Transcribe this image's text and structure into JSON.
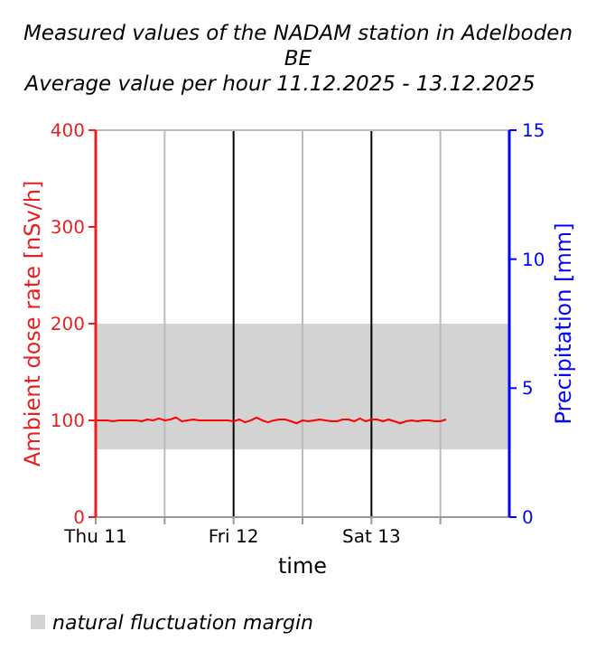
{
  "chart_data": {
    "type": "line",
    "title": "Measured values of the NADAM station in Adelboden BE",
    "subtitle": "Average value per hour 11.12.2025 - 13.12.2025",
    "xlabel": "time",
    "ylabel": "Ambient dose rate [nSv/h]",
    "y2label": "Precipitation [mm]",
    "x": [
      "2025-12-11T00:00",
      "2025-12-11T01:00",
      "2025-12-11T02:00",
      "2025-12-11T03:00",
      "2025-12-11T04:00",
      "2025-12-11T05:00",
      "2025-12-11T06:00",
      "2025-12-11T07:00",
      "2025-12-11T08:00",
      "2025-12-11T09:00",
      "2025-12-11T10:00",
      "2025-12-11T11:00",
      "2025-12-11T12:00",
      "2025-12-11T13:00",
      "2025-12-11T14:00",
      "2025-12-11T15:00",
      "2025-12-11T16:00",
      "2025-12-11T17:00",
      "2025-12-11T18:00",
      "2025-12-11T19:00",
      "2025-12-11T20:00",
      "2025-12-11T21:00",
      "2025-12-11T22:00",
      "2025-12-11T23:00",
      "2025-12-12T00:00",
      "2025-12-12T01:00",
      "2025-12-12T02:00",
      "2025-12-12T03:00",
      "2025-12-12T04:00",
      "2025-12-12T05:00",
      "2025-12-12T06:00",
      "2025-12-12T07:00",
      "2025-12-12T08:00",
      "2025-12-12T09:00",
      "2025-12-12T10:00",
      "2025-12-12T11:00",
      "2025-12-12T12:00",
      "2025-12-12T13:00",
      "2025-12-12T14:00",
      "2025-12-12T15:00",
      "2025-12-12T16:00",
      "2025-12-12T17:00",
      "2025-12-12T18:00",
      "2025-12-12T19:00",
      "2025-12-12T20:00",
      "2025-12-12T21:00",
      "2025-12-12T22:00",
      "2025-12-12T23:00",
      "2025-12-13T00:00",
      "2025-12-13T01:00",
      "2025-12-13T02:00",
      "2025-12-13T03:00",
      "2025-12-13T04:00",
      "2025-12-13T05:00",
      "2025-12-13T06:00",
      "2025-12-13T07:00",
      "2025-12-13T08:00",
      "2025-12-13T09:00",
      "2025-12-13T10:00",
      "2025-12-13T11:00",
      "2025-12-13T12:00",
      "2025-12-13T13:00"
    ],
    "series": [
      {
        "color": "#ff0000",
        "values": [
          100,
          100,
          100,
          99,
          100,
          100,
          100,
          100,
          99,
          101,
          100,
          102,
          100,
          101,
          103,
          99,
          100,
          101,
          100,
          100,
          100,
          100,
          100,
          100,
          99,
          101,
          98,
          100,
          103,
          100,
          98,
          100,
          101,
          101,
          99,
          97,
          100,
          99,
          100,
          101,
          100,
          99,
          99,
          101,
          101,
          99,
          102,
          99,
          101,
          101,
          99,
          101,
          99,
          97,
          99,
          100,
          99,
          100,
          100,
          99,
          99,
          101
        ]
      }
    ],
    "xlim": [
      "2025-12-11T00:00",
      "2025-12-14T00:00"
    ],
    "xticks": [
      {
        "value": "2025-12-11T00:00",
        "label": "Thu 11"
      },
      {
        "value": "2025-12-11T12:00",
        "label": null
      },
      {
        "value": "2025-12-12T00:00",
        "label": "Fri 12"
      },
      {
        "value": "2025-12-12T12:00",
        "label": null
      },
      {
        "value": "2025-12-13T00:00",
        "label": "Sat 13"
      },
      {
        "value": "2025-12-13T12:00",
        "label": null
      }
    ],
    "ylim": [
      0,
      400
    ],
    "yticks": [
      0,
      100,
      200,
      300,
      400
    ],
    "y2lim": [
      0,
      15
    ],
    "y2ticks": [
      0,
      5,
      10,
      15
    ],
    "bands": [
      {
        "axis": "y",
        "from": 70,
        "to": 200,
        "label": "natural fluctuation margin",
        "color": "#d3d3d3"
      }
    ],
    "grid": "x",
    "legend": "bottom left",
    "line_style": "solid",
    "marker": "none"
  }
}
